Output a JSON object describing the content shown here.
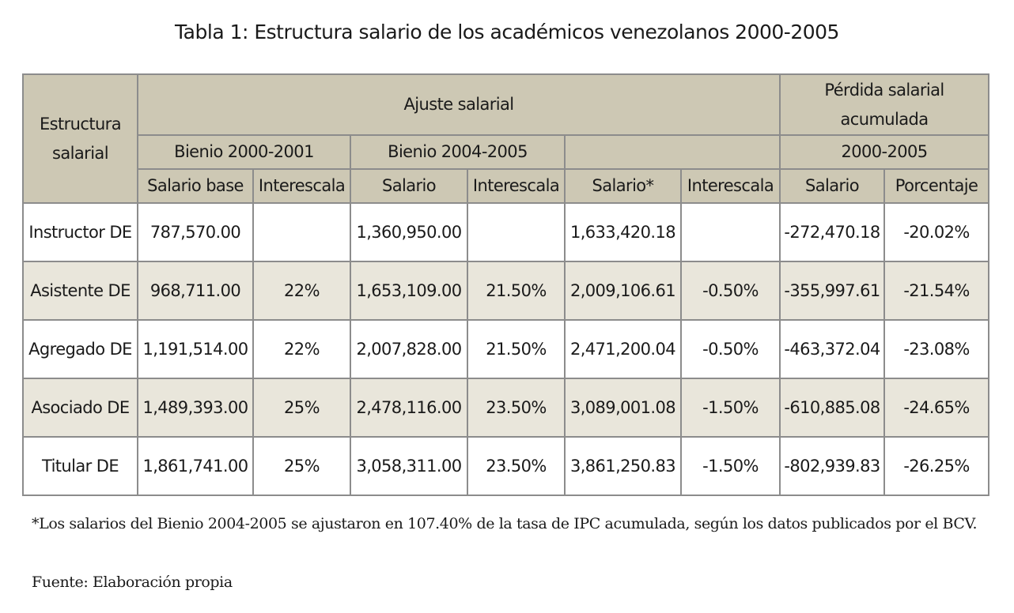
{
  "title": "Tabla 1: Estructura salario de los académicos venezolanos 2000-2005",
  "table": {
    "header": {
      "row_header": "Estructura salarial",
      "group_1": "Ajuste salarial",
      "group_2": "Pérdida salarial acumulada",
      "period_1": "Bienio 2000-2001",
      "period_2": "Bienio 2004-2005",
      "period_3": "2000-2005",
      "columns": [
        "Salario base",
        "Interescala",
        "Salario",
        "Interescala",
        "Salario*",
        "Interescala",
        "Salario",
        "Porcentaje"
      ]
    },
    "rows": [
      [
        "Instructor DE",
        "787,570.00",
        null,
        "1,360,950.00",
        null,
        "1,633,420.18",
        null,
        "-272,470.18",
        "-20.02%"
      ],
      [
        "Asistente DE",
        "968,711.00",
        "22%",
        "1,653,109.00",
        "21.50%",
        "2,009,106.61",
        "-0.50%",
        "-355,997.61",
        "-21.54%"
      ],
      [
        "Agregado DE",
        "1,191,514.00",
        "22%",
        "2,007,828.00",
        "21.50%",
        "2,471,200.04",
        "-0.50%",
        "-463,372.04",
        "-23.08%"
      ],
      [
        "Asociado DE",
        "1,489,393.00",
        "25%",
        "2,478,116.00",
        "23.50%",
        "3,089,001.08",
        "-1.50%",
        "-610,885.08",
        "-24.65%"
      ],
      [
        "Titular DE",
        "1,861,741.00",
        "25%",
        "3,058,311.00",
        "23.50%",
        "3,861,250.83",
        "-1.50%",
        "-802,939.83",
        "-26.25%"
      ]
    ]
  },
  "footnote": "*Los salarios del Bienio 2004-2005 se ajustaron en 107.40% de la tasa de IPC acumulada, según los datos publicados por el BCV.",
  "source": "Fuente: Elaboración propia"
}
